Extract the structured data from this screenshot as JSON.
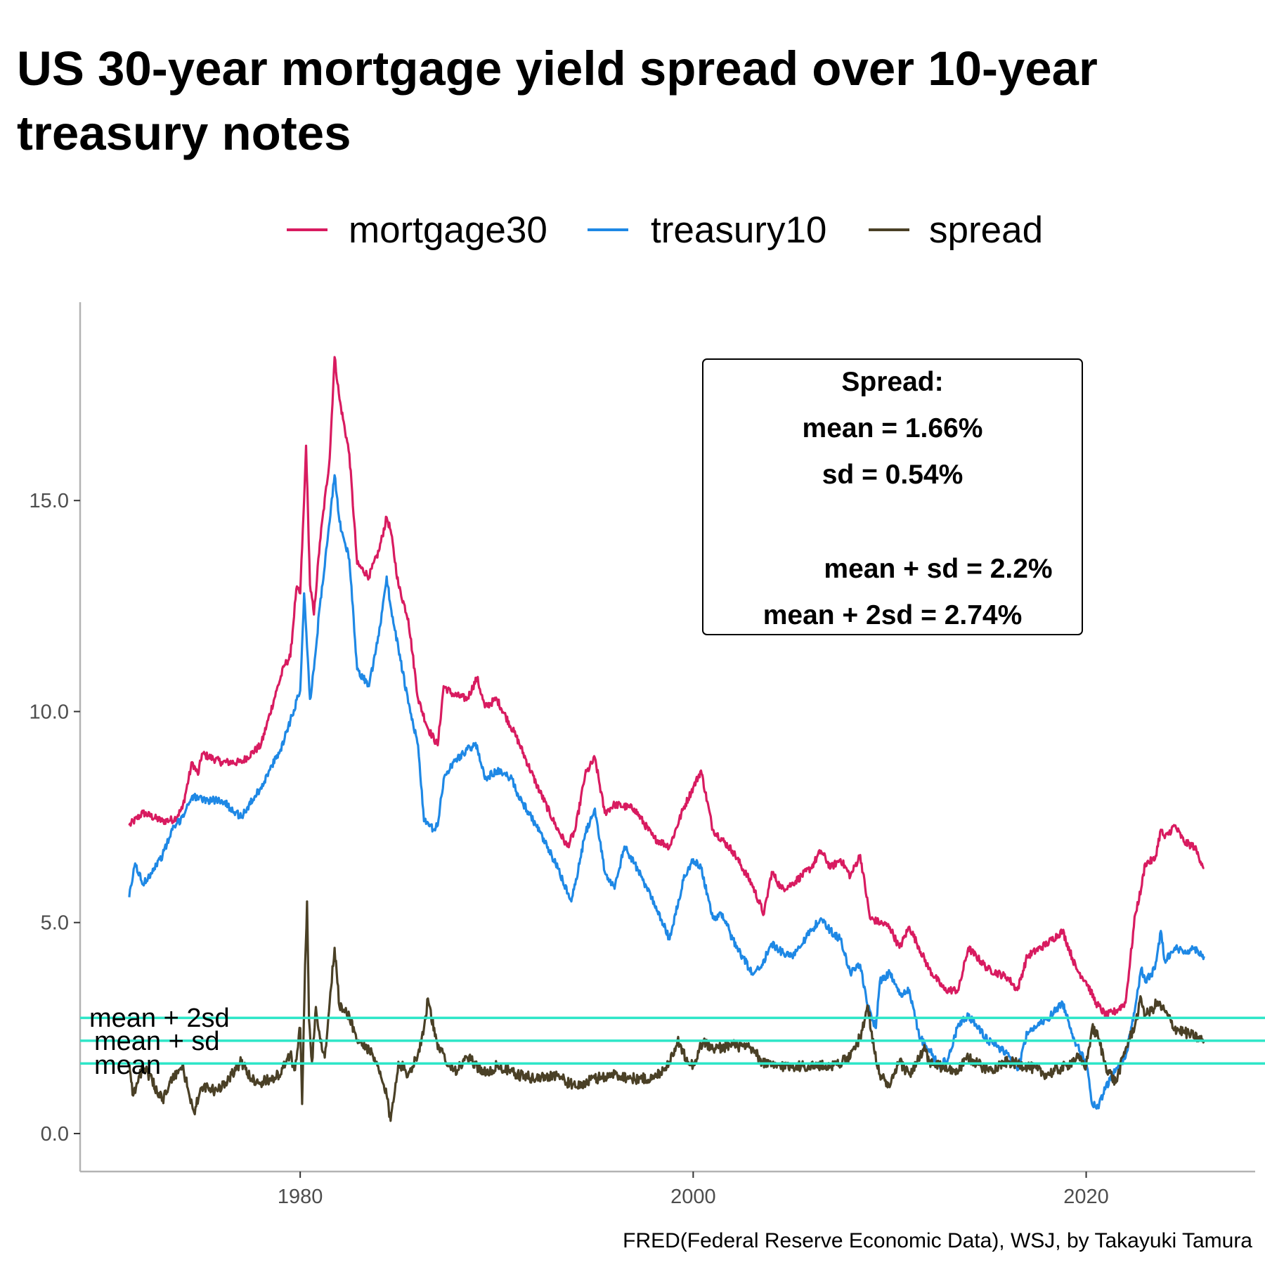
{
  "chart_data": {
    "type": "line",
    "title": "US 30-year mortgage yield spread over 10-year treasury notes",
    "caption": "FRED(Federal Reserve Economic Data), WSJ, by Takayuki Tamura",
    "legend_position": "top",
    "grid": false,
    "xlim": [
      1968.8,
      2028.6
    ],
    "ylim": [
      -0.9,
      19.7
    ],
    "x_ticks": [
      1980,
      2000,
      2020
    ],
    "y_ticks": [
      0,
      5,
      10,
      15
    ],
    "y_tick_labels": [
      "0.0",
      "5.0",
      "10.0",
      "15.0"
    ],
    "series": [
      {
        "name": "mortgage30",
        "color": "#d81b60",
        "x": [
          1971.3,
          1972,
          1973,
          1973.6,
          1974,
          1974.5,
          1974.8,
          1975,
          1976,
          1977,
          1978,
          1978.8,
          1979.2,
          1979.5,
          1979.8,
          1980,
          1980.2,
          1980.3,
          1980.5,
          1980.7,
          1981,
          1981.5,
          1981.75,
          1982,
          1982.5,
          1982.9,
          1983.5,
          1984,
          1984.4,
          1984.6,
          1985,
          1985.5,
          1986,
          1986.5,
          1987,
          1987.3,
          1987.8,
          1988.5,
          1989,
          1989.4,
          1990,
          1991,
          1992,
          1993,
          1993.6,
          1994,
          1994.5,
          1995,
          1995.5,
          1996,
          1997,
          1998,
          1998.8,
          1999.5,
          2000,
          2000.4,
          2001,
          2002,
          2003,
          2003.6,
          2004,
          2004.5,
          2005,
          2006,
          2006.5,
          2007,
          2007.5,
          2008,
          2008.5,
          2009,
          2009.5,
          2010,
          2010.5,
          2011,
          2011.5,
          2012,
          2012.8,
          2013.5,
          2014,
          2015,
          2016,
          2016.5,
          2017,
          2018,
          2018.8,
          2019.5,
          2020,
          2020.5,
          2021,
          2021.5,
          2022,
          2022.5,
          2022.8,
          2023,
          2023.5,
          2023.8,
          2024,
          2024.5,
          2025,
          2025.5,
          2026
        ],
        "y": [
          7.3,
          7.6,
          7.4,
          7.45,
          7.7,
          8.8,
          8.5,
          9.0,
          8.8,
          8.8,
          9.2,
          10.5,
          11.1,
          11.3,
          12.9,
          12.8,
          15.0,
          16.3,
          13.0,
          12.3,
          14.0,
          16.0,
          18.4,
          17.4,
          16.1,
          13.5,
          13.2,
          13.8,
          14.6,
          14.3,
          13.0,
          12.2,
          10.3,
          9.6,
          9.2,
          10.6,
          10.4,
          10.3,
          10.8,
          10.1,
          10.3,
          9.4,
          8.3,
          7.3,
          6.8,
          7.2,
          8.5,
          8.9,
          7.6,
          7.8,
          7.7,
          7.0,
          6.8,
          7.7,
          8.2,
          8.6,
          7.2,
          6.7,
          5.9,
          5.2,
          6.2,
          5.8,
          5.9,
          6.3,
          6.7,
          6.3,
          6.5,
          6.1,
          6.6,
          5.1,
          5.0,
          4.9,
          4.4,
          4.9,
          4.4,
          3.9,
          3.4,
          3.4,
          4.4,
          3.9,
          3.7,
          3.4,
          4.2,
          4.5,
          4.8,
          3.9,
          3.6,
          3.1,
          2.8,
          2.9,
          3.1,
          5.2,
          5.8,
          6.4,
          6.5,
          7.2,
          7.0,
          7.3,
          6.9,
          6.8,
          6.3
        ]
      },
      {
        "name": "treasury10",
        "color": "#1e88e5",
        "x": [
          1971.3,
          1971.6,
          1972,
          1973,
          1973.5,
          1974,
          1974.5,
          1975,
          1976,
          1977,
          1978,
          1979,
          1979.5,
          1980,
          1980.2,
          1980.5,
          1980.7,
          1981,
          1981.5,
          1981.75,
          1982,
          1982.5,
          1982.9,
          1983.5,
          1984,
          1984.4,
          1984.6,
          1985,
          1985.5,
          1986,
          1986.3,
          1986.8,
          1987,
          1987.3,
          1987.8,
          1988.5,
          1989,
          1989.4,
          1990,
          1990.8,
          1991,
          1992,
          1993,
          1993.8,
          1994,
          1994.5,
          1995,
          1995.5,
          1996,
          1996.5,
          1997,
          1998,
          1998.8,
          1999.5,
          2000,
          2000.4,
          2001,
          2001.5,
          2002,
          2003,
          2003.5,
          2004,
          2004.5,
          2005,
          2006,
          2006.5,
          2007,
          2007.5,
          2008,
          2008.5,
          2008.9,
          2009.3,
          2009.5,
          2010,
          2010.5,
          2011,
          2011.5,
          2012,
          2012.5,
          2013,
          2013.5,
          2014,
          2015,
          2016,
          2016.5,
          2017,
          2018,
          2018.8,
          2019.5,
          2020,
          2020.3,
          2020.6,
          2021,
          2021.5,
          2022,
          2022.5,
          2022.8,
          2023,
          2023.5,
          2023.8,
          2024,
          2024.5,
          2025,
          2025.5,
          2026
        ],
        "y": [
          5.6,
          6.4,
          5.9,
          6.6,
          7.2,
          7.5,
          8.0,
          7.9,
          7.9,
          7.5,
          8.2,
          9.1,
          9.8,
          10.5,
          12.8,
          10.3,
          11.0,
          12.5,
          14.5,
          15.6,
          14.5,
          13.6,
          11.0,
          10.6,
          11.8,
          13.2,
          12.5,
          11.5,
          10.2,
          9.2,
          7.4,
          7.2,
          7.3,
          8.4,
          8.8,
          9.1,
          9.2,
          8.4,
          8.6,
          8.4,
          8.1,
          7.3,
          6.4,
          5.5,
          5.9,
          7.1,
          7.7,
          6.2,
          5.8,
          6.8,
          6.4,
          5.5,
          4.6,
          6.0,
          6.5,
          6.3,
          5.1,
          5.2,
          4.6,
          3.8,
          4.0,
          4.5,
          4.3,
          4.2,
          4.8,
          5.1,
          4.8,
          4.6,
          3.8,
          4.0,
          3.0,
          2.5,
          3.6,
          3.8,
          3.3,
          3.4,
          2.3,
          2.0,
          1.6,
          1.8,
          2.6,
          2.8,
          2.2,
          1.9,
          1.5,
          2.4,
          2.7,
          3.1,
          2.1,
          1.7,
          0.7,
          0.6,
          1.1,
          1.5,
          1.8,
          3.0,
          3.9,
          3.6,
          3.9,
          4.8,
          4.1,
          4.4,
          4.3,
          4.4,
          4.2
        ]
      },
      {
        "name": "spread",
        "color": "#4a4026",
        "x": [
          1971.3,
          1971.5,
          1972,
          1973,
          1973.5,
          1974,
          1974.6,
          1975,
          1975.8,
          1976.5,
          1977,
          1977.5,
          1978,
          1978.5,
          1979,
          1979.5,
          1979.7,
          1980,
          1980.1,
          1980.25,
          1980.35,
          1980.45,
          1980.6,
          1980.8,
          1981,
          1981.25,
          1981.5,
          1981.75,
          1982,
          1982.5,
          1982.9,
          1983.5,
          1984,
          1984.4,
          1984.6,
          1985,
          1985.5,
          1986,
          1986.3,
          1986.5,
          1987,
          1987.3,
          1987.6,
          1988,
          1988.5,
          1989,
          1989.5,
          1990,
          1991,
          1992,
          1993,
          1994,
          1995,
          1996,
          1997,
          1998,
          1998.8,
          1999.2,
          1999.5,
          2000,
          2000.5,
          2001,
          2002,
          2003,
          2003.5,
          2004,
          2005,
          2006,
          2007,
          2008,
          2008.5,
          2008.9,
          2009.2,
          2009.5,
          2010,
          2010.5,
          2011,
          2011.4,
          2011.8,
          2012,
          2012.5,
          2013,
          2013.5,
          2014,
          2015,
          2016,
          2017,
          2018,
          2019,
          2019.5,
          2020,
          2020.3,
          2020.6,
          2021,
          2021.5,
          2022,
          2022.5,
          2022.8,
          2023,
          2023.3,
          2023.6,
          2024,
          2024.5,
          2025,
          2025.5,
          2026
        ],
        "y": [
          1.7,
          0.9,
          1.6,
          0.8,
          1.3,
          1.6,
          0.5,
          1.1,
          1.0,
          1.4,
          1.7,
          1.3,
          1.2,
          1.3,
          1.4,
          1.9,
          1.5,
          2.5,
          0.7,
          4.0,
          5.5,
          2.7,
          1.7,
          3.0,
          2.3,
          1.8,
          3.1,
          4.4,
          3.0,
          2.8,
          2.2,
          2.0,
          1.5,
          0.9,
          0.3,
          1.7,
          1.4,
          1.9,
          2.5,
          3.2,
          2.0,
          1.9,
          1.6,
          1.5,
          1.8,
          1.6,
          1.4,
          1.6,
          1.4,
          1.3,
          1.4,
          1.1,
          1.3,
          1.4,
          1.3,
          1.3,
          1.7,
          2.2,
          1.9,
          1.6,
          2.2,
          2.0,
          2.1,
          2.0,
          1.7,
          1.6,
          1.6,
          1.6,
          1.6,
          1.8,
          2.3,
          3.0,
          2.0,
          1.4,
          1.1,
          1.7,
          1.4,
          1.7,
          2.0,
          1.7,
          1.6,
          1.5,
          1.5,
          1.8,
          1.5,
          1.7,
          1.6,
          1.4,
          1.6,
          1.8,
          1.6,
          2.5,
          2.3,
          1.6,
          1.2,
          2.0,
          2.6,
          3.2,
          2.8,
          2.9,
          3.1,
          2.9,
          2.5,
          2.4,
          2.3,
          2.2
        ]
      }
    ],
    "reference_lines": [
      {
        "label": "mean + 2sd",
        "value": 2.74,
        "color": "#2ee6c8"
      },
      {
        "label": "mean + sd",
        "value": 2.2,
        "color": "#2ee6c8"
      },
      {
        "label": "mean",
        "value": 1.66,
        "color": "#2ee6c8"
      }
    ],
    "annotation": {
      "heading": "Spread:",
      "mean_line": "mean = 1.66%",
      "sd_line": "sd = 0.54%",
      "mean_sd_line": "mean + sd = 2.2%",
      "mean_2sd_line": "mean + 2sd = 2.74%"
    }
  }
}
